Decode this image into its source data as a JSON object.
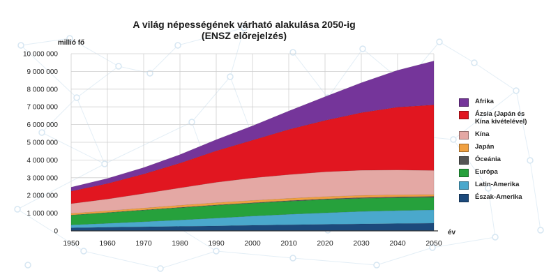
{
  "chart_data": {
    "type": "area",
    "stacked": true,
    "title": "A világ népességének várható alakulása 2050-ig",
    "subtitle": "(ENSZ előrejelzés)",
    "ylabel": "millió fő",
    "xlabel": "év",
    "x": [
      1950,
      1960,
      1970,
      1980,
      1990,
      2000,
      2010,
      2020,
      2030,
      2040,
      2050
    ],
    "x_tick_labels": [
      "1950",
      "1960",
      "1970",
      "1980",
      "1990",
      "2000",
      "2010",
      "2020",
      "2030",
      "2040",
      "2050"
    ],
    "ylim": [
      0,
      10000000
    ],
    "y_ticks": [
      0,
      1000000,
      2000000,
      3000000,
      4000000,
      5000000,
      6000000,
      7000000,
      8000000,
      9000000,
      10000000
    ],
    "y_tick_labels": [
      "0",
      "1 000 000",
      "2 000 000",
      "3 000 000",
      "4 000 000",
      "5 000 000",
      "6 000 000",
      "7 000 000",
      "8 000 000",
      "9 000 000",
      "10 000 000"
    ],
    "grid": true,
    "legend_position": "right",
    "series": [
      {
        "name": "Észak-Amerika",
        "color": "#1c4a7c",
        "values": [
          170000,
          205000,
          230000,
          255000,
          280000,
          315000,
          345000,
          370000,
          395000,
          415000,
          435000
        ]
      },
      {
        "name": "Latin-Amerika",
        "color": "#4aa8cc",
        "values": [
          165000,
          220000,
          285000,
          360000,
          440000,
          520000,
          590000,
          650000,
          700000,
          730000,
          750000
        ]
      },
      {
        "name": "Európa",
        "color": "#26a13c",
        "values": [
          550000,
          600000,
          650000,
          690000,
          720000,
          725000,
          735000,
          745000,
          740000,
          725000,
          705000
        ]
      },
      {
        "name": "Óceánia",
        "color": "#555555",
        "values": [
          12000,
          15000,
          19000,
          23000,
          27000,
          31000,
          37000,
          42000,
          47000,
          52000,
          57000
        ]
      },
      {
        "name": "Japán",
        "color": "#f0a040",
        "values": [
          85000,
          94000,
          104000,
          117000,
          123000,
          127000,
          128000,
          126000,
          120000,
          113000,
          105000
        ]
      },
      {
        "name": "Kína",
        "color": "#e4a8a4",
        "values": [
          555000,
          660000,
          820000,
          980000,
          1150000,
          1270000,
          1340000,
          1400000,
          1420000,
          1400000,
          1360000
        ]
      },
      {
        "name": "Ázsia (Japán és\nKína kivételével)",
        "color": "#e11620",
        "values": [
          700000,
          880000,
          1100000,
          1400000,
          1780000,
          2130000,
          2550000,
          2900000,
          3250000,
          3550000,
          3700000
        ]
      },
      {
        "name": "Afrika",
        "color": "#75359a",
        "values": [
          230000,
          285000,
          365000,
          480000,
          630000,
          810000,
          1040000,
          1340000,
          1690000,
          2080000,
          2480000
        ]
      }
    ]
  }
}
